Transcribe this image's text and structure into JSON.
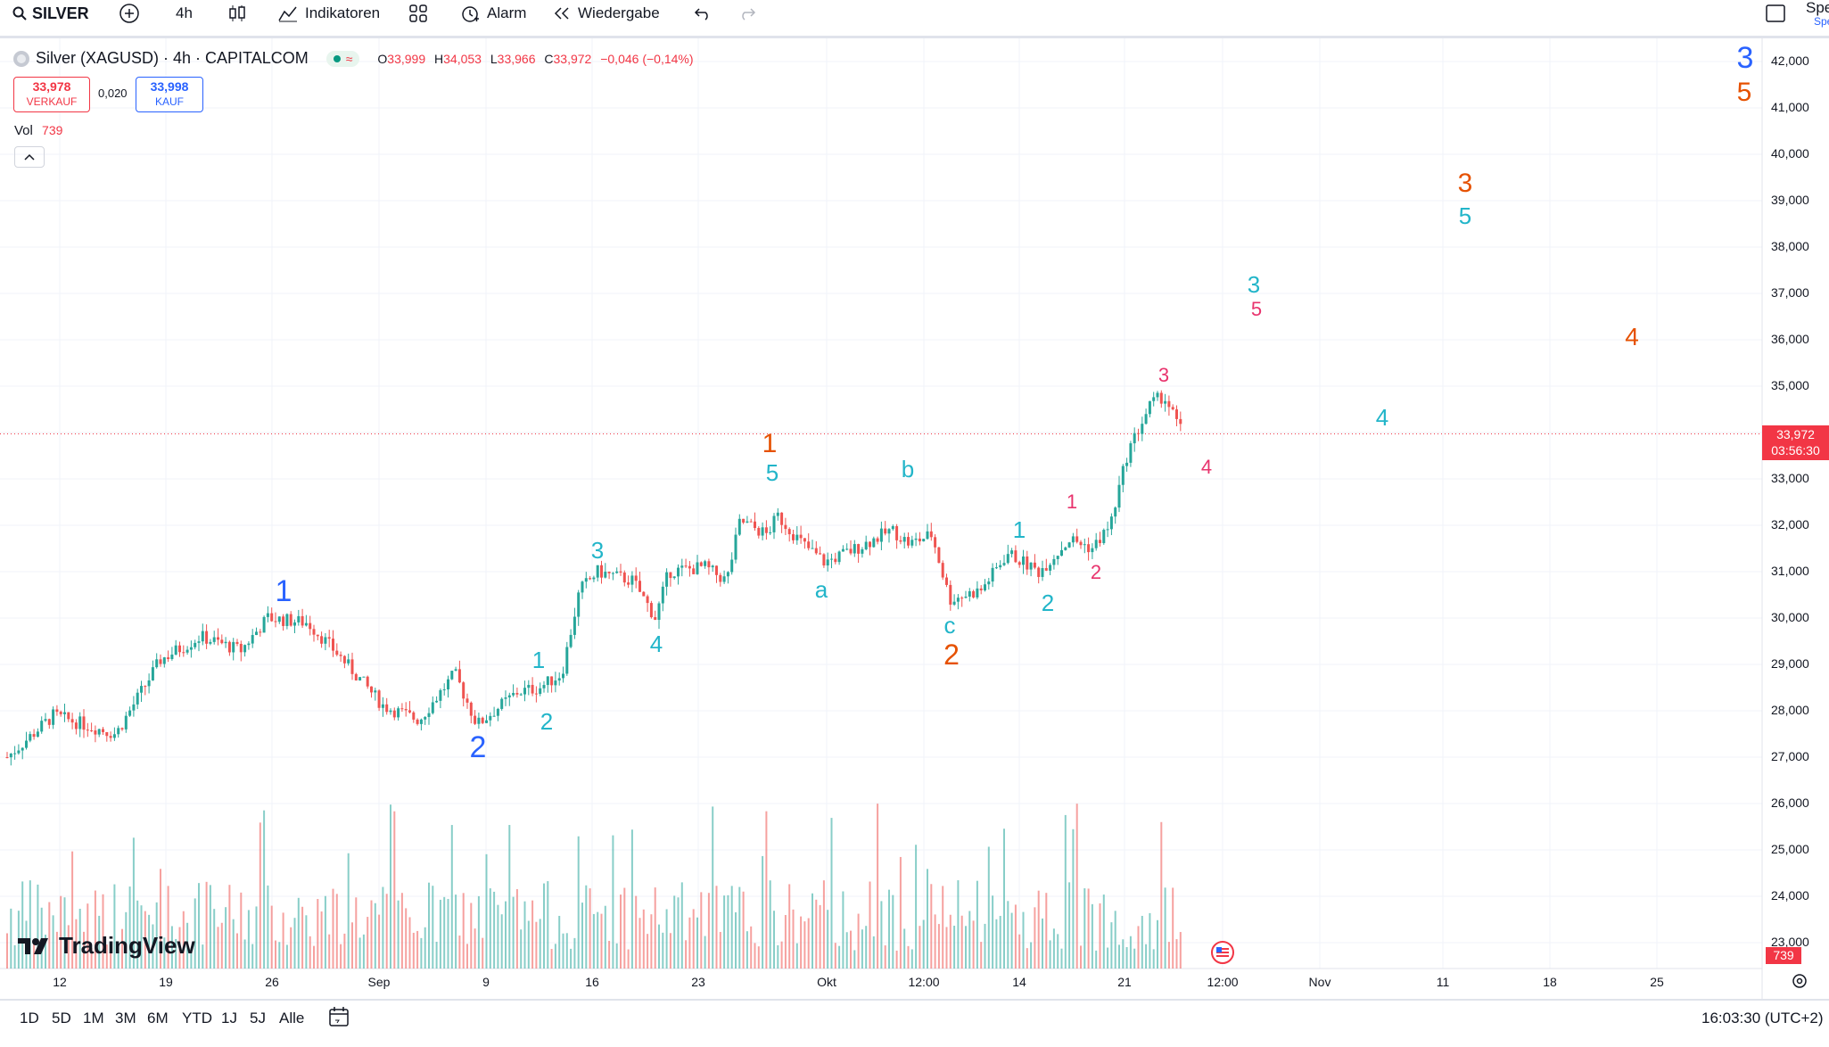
{
  "toolbar": {
    "symbol": "SILVER",
    "interval": "4h",
    "indicators": "Indikatoren",
    "alert": "Alarm",
    "replay": "Wiedergabe",
    "right_partial": "Spe",
    "right_partial2": "Spe"
  },
  "legend": {
    "title": "Silver (XAGUSD) · 4h · CAPITALCOM",
    "o_label": "O",
    "o": "33,999",
    "h_label": "H",
    "h": "34,053",
    "l_label": "L",
    "l": "33,966",
    "c_label": "C",
    "c": "33,972",
    "change": "−0,046 (−0,14%)",
    "sell_price": "33,978",
    "sell_label": "VERKAUF",
    "spread": "0,020",
    "buy_price": "33,998",
    "buy_label": "KAUF",
    "vol_label": "Vol",
    "vol": "739"
  },
  "price_axis": {
    "ticks": [
      "42,000",
      "41,000",
      "40,000",
      "39,000",
      "38,000",
      "37,000",
      "36,000",
      "35,000",
      "33,000",
      "32,000",
      "31,000",
      "30,000",
      "29,000",
      "28,000",
      "27,000",
      "26,000",
      "25,000",
      "24,000",
      "23,000"
    ],
    "last_price": "33,972",
    "countdown": "03:56:30",
    "vol_badge": "739"
  },
  "time_axis": {
    "ticks": [
      "12",
      "19",
      "26",
      "Sep",
      "9",
      "16",
      "23",
      "Okt",
      "12:00",
      "14",
      "21",
      "12:00",
      "Nov",
      "11",
      "18",
      "25"
    ]
  },
  "ranges": [
    "1D",
    "5D",
    "1M",
    "3M",
    "6M",
    "YTD",
    "1J",
    "5J",
    "Alle"
  ],
  "timezone": "16:03:30 (UTC+2)",
  "branding": "TradingView",
  "colors": {
    "up": "#26a69a",
    "down": "#ef5350",
    "blue": "#2962ff",
    "orange": "#e65100",
    "cyan": "#22b5c9",
    "pink": "#e8336d"
  },
  "wave_labels": [
    {
      "t": "1",
      "c": "blue"
    },
    {
      "t": "2",
      "c": "blue"
    },
    {
      "t": "3",
      "c": "blue"
    },
    {
      "t": "5",
      "c": "orange"
    },
    {
      "t": "1",
      "c": "orange"
    },
    {
      "t": "5",
      "c": "cyan"
    },
    {
      "t": "2",
      "c": "orange"
    },
    {
      "t": "3",
      "c": "orange"
    },
    {
      "t": "4",
      "c": "orange"
    },
    {
      "t": "1",
      "c": "cyan"
    },
    {
      "t": "2",
      "c": "cyan"
    },
    {
      "t": "3",
      "c": "cyan"
    },
    {
      "t": "4",
      "c": "cyan"
    },
    {
      "t": "a",
      "c": "cyan"
    },
    {
      "t": "b",
      "c": "cyan"
    },
    {
      "t": "c",
      "c": "cyan"
    },
    {
      "t": "1",
      "c": "cyan"
    },
    {
      "t": "2",
      "c": "cyan"
    },
    {
      "t": "3",
      "c": "cyan"
    },
    {
      "t": "4",
      "c": "cyan"
    },
    {
      "t": "5",
      "c": "cyan"
    },
    {
      "t": "1",
      "c": "pink"
    },
    {
      "t": "2",
      "c": "pink"
    },
    {
      "t": "3",
      "c": "pink"
    },
    {
      "t": "4",
      "c": "pink"
    },
    {
      "t": "5",
      "c": "pink"
    }
  ]
}
